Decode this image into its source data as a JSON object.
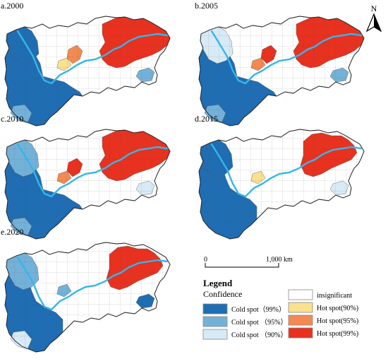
{
  "panels": [
    {
      "label": "a.2000"
    },
    {
      "label": "b.2005"
    },
    {
      "label": "c.2010"
    },
    {
      "label": "d.2015"
    },
    {
      "label": "e.2020"
    }
  ],
  "north_label": "N",
  "scale_bar": {
    "start": "0",
    "end": "1,000 km"
  },
  "legend": {
    "title": "Legend",
    "subtitle": "Confidence",
    "items": [
      {
        "label": "Cold spot（99%）",
        "color": "#1f6db3"
      },
      {
        "label": "Cold spot （95%）",
        "color": "#74b1d8"
      },
      {
        "label": "Cold spot （90%）",
        "color": "#d7eaf6"
      },
      {
        "label": "insignificant",
        "color": "#ffffff"
      },
      {
        "label": "Hot spot(90%)",
        "color": "#fbe08e"
      },
      {
        "label": "Hot spot(95%)",
        "color": "#f28a52"
      },
      {
        "label": "Hot spot(99%)",
        "color": "#e8311f"
      }
    ]
  },
  "river_color": "#35b6ea"
}
